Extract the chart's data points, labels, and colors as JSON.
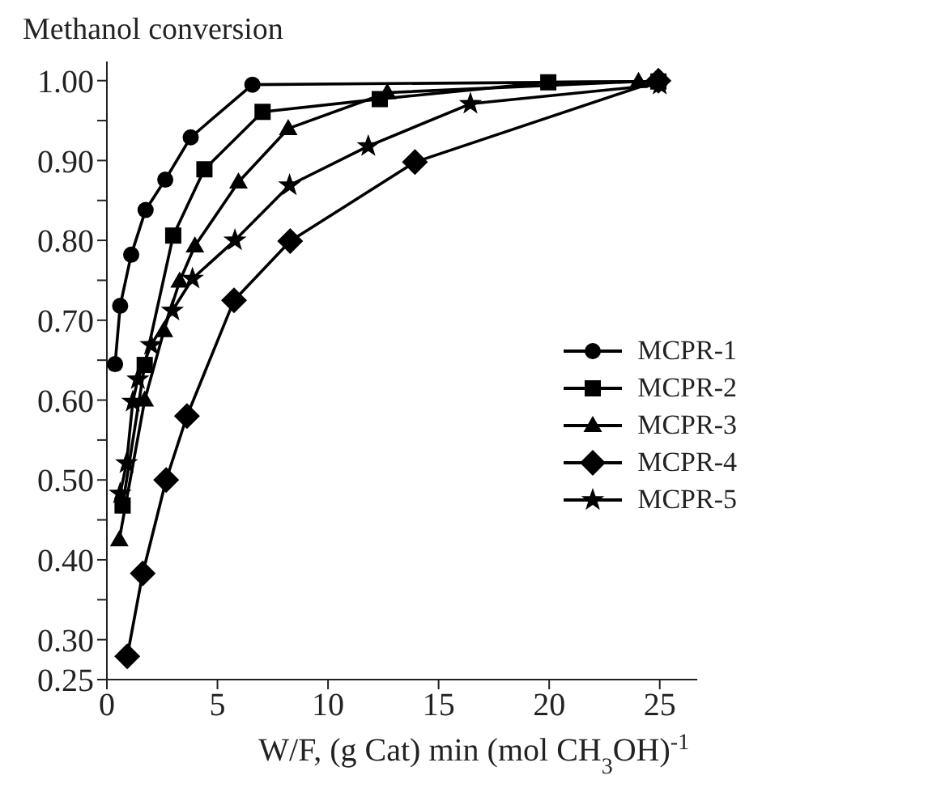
{
  "chart_data": {
    "type": "line",
    "ylabel": "Methanol conversion",
    "xlabel": "W/F, (g Cat) min (mol CH$_{3}$OH)$^{-1}$",
    "xlim": [
      0,
      26.7
    ],
    "xticks": [
      0,
      5,
      10,
      15,
      20,
      25
    ],
    "ylim": [
      0.25,
      1.024
    ],
    "yticks": [
      {
        "value": 0.25,
        "label": "0.25"
      },
      {
        "value": 0.3,
        "label": "0.30"
      },
      {
        "value": 0.35,
        "label": null
      },
      {
        "value": 0.4,
        "label": "0.40"
      },
      {
        "value": 0.45,
        "label": null
      },
      {
        "value": 0.5,
        "label": "0.50"
      },
      {
        "value": 0.55,
        "label": null
      },
      {
        "value": 0.6,
        "label": "0.60"
      },
      {
        "value": 0.65,
        "label": null
      },
      {
        "value": 0.7,
        "label": "0.70"
      },
      {
        "value": 0.75,
        "label": null
      },
      {
        "value": 0.8,
        "label": "0.80"
      },
      {
        "value": 0.85,
        "label": null
      },
      {
        "value": 0.9,
        "label": "0.90"
      },
      {
        "value": 0.95,
        "label": null
      },
      {
        "value": 1,
        "label": "1.00"
      }
    ],
    "grid": false,
    "legend": "right",
    "line_style": "solid",
    "series": [
      {
        "name": "MCPR-1",
        "color": "#000000",
        "marker": "circle",
        "x": [
          0.37,
          0.6,
          1.1,
          1.75,
          2.64,
          3.79,
          6.58,
          25
        ],
        "values": [
          0.645,
          0.718,
          0.782,
          0.838,
          0.876,
          0.929,
          0.995,
          0.999
        ]
      },
      {
        "name": "MCPR-2",
        "color": "#000000",
        "marker": "square",
        "x": [
          0.71,
          1.71,
          3.0,
          4.41,
          7.04,
          12.34,
          19.96,
          24.94
        ],
        "values": [
          0.468,
          0.644,
          0.806,
          0.889,
          0.961,
          0.977,
          0.998,
          0.999
        ]
      },
      {
        "name": "MCPR-3",
        "color": "#000000",
        "marker": "triangle",
        "x": [
          0.56,
          1.71,
          2.58,
          3.29,
          3.98,
          5.95,
          8.2,
          12.68,
          24.04
        ],
        "values": [
          0.425,
          0.6,
          0.687,
          0.749,
          0.793,
          0.873,
          0.94,
          0.985,
          0.999
        ]
      },
      {
        "name": "MCPR-4",
        "color": "#000000",
        "marker": "diamond",
        "x": [
          0.92,
          1.62,
          2.68,
          3.62,
          5.75,
          8.29,
          13.93,
          24.94
        ],
        "values": [
          0.279,
          0.383,
          0.5,
          0.58,
          0.725,
          0.799,
          0.898,
          1.0
        ]
      },
      {
        "name": "MCPR-5",
        "color": "#000000",
        "marker": "star",
        "x": [
          0.6,
          0.89,
          1.17,
          1.4,
          2.0,
          2.96,
          3.87,
          5.79,
          8.26,
          11.82,
          16.44,
          25
        ],
        "values": [
          0.483,
          0.521,
          0.598,
          0.626,
          0.669,
          0.712,
          0.752,
          0.8,
          0.869,
          0.918,
          0.971,
          0.995
        ]
      }
    ]
  }
}
